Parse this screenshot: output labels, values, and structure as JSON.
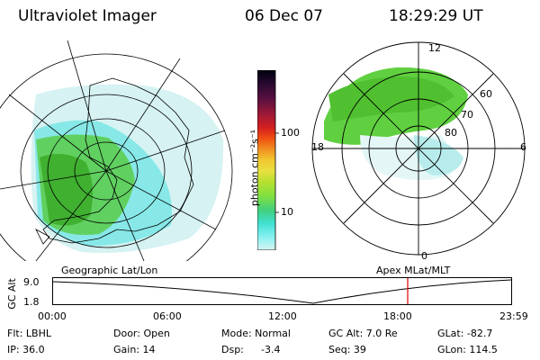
{
  "header": {
    "instrument": "Ultraviolet Imager",
    "date": "06 Dec 07",
    "time": "18:29:29 UT"
  },
  "left_panel": {
    "caption": "Geographic Lat/Lon"
  },
  "right_panel": {
    "caption": "Apex  MLat/MLT",
    "mlt_labels": {
      "top": "12",
      "left": "18",
      "right": "6",
      "bottom": "0"
    },
    "lat_labels": [
      "60",
      "70",
      "80"
    ]
  },
  "colorbar": {
    "unit_label": "photon cm⁻²s⁻¹",
    "tick_labels": [
      "100",
      "10"
    ],
    "colors": [
      "#000010",
      "#2a0a30",
      "#5a1040",
      "#9a1838",
      "#d42020",
      "#f05010",
      "#f09020",
      "#f0c830",
      "#e8e040",
      "#b8e030",
      "#80e040",
      "#40d080",
      "#40e0d0",
      "#80f0f0",
      "#d8f4f4"
    ]
  },
  "altitude_plot": {
    "axis_label": "GC Alt",
    "y_ticks": [
      "9.0",
      "1.8"
    ],
    "x_ticks": [
      "00:00",
      "06:00",
      "12:00",
      "18:00",
      "23:59"
    ],
    "marker_color": "#e00000"
  },
  "footer": {
    "row1": {
      "flt": "Flt: LBHL",
      "door": "Door: Open",
      "mode": "Mode: Normal",
      "gcalt": "GC Alt: 7.0 Re",
      "glat": "GLat: -82.7"
    },
    "row2": {
      "ip": "IP: 36.0",
      "gain": "Gain: 14",
      "dsp_label": "Dsp:",
      "dsp_value": "-3.4",
      "seq": "Seq: 39",
      "glon": "GLon: 114.5"
    }
  }
}
